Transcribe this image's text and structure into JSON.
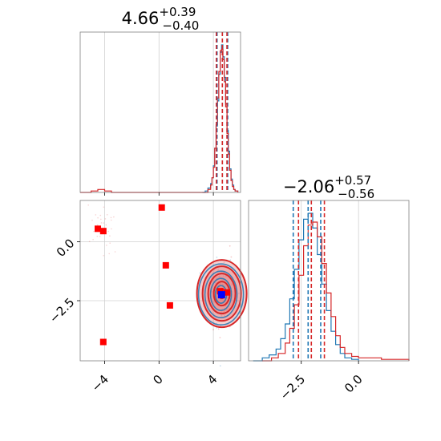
{
  "chart_data": [
    {
      "type": "histogram",
      "panel": "top-left marginal",
      "title": {
        "value": "4.66",
        "plus": "+0.39",
        "minus": "−0.40"
      },
      "xlim": [
        -5.8,
        6.0
      ],
      "grid": true,
      "series": [
        {
          "name": "",
          "color": "#1f77b4",
          "x": [
            3.2,
            3.4,
            3.6,
            3.8,
            3.9,
            4.0,
            4.1,
            4.2,
            4.3,
            4.4,
            4.5,
            4.6,
            4.7,
            4.8,
            4.9,
            5.0,
            5.1,
            5.2,
            5.3,
            5.4,
            5.5,
            5.6,
            5.8
          ],
          "y": [
            0.0,
            0.01,
            0.03,
            0.06,
            0.1,
            0.18,
            0.3,
            0.45,
            0.62,
            0.8,
            0.95,
            1.0,
            0.92,
            0.78,
            0.6,
            0.42,
            0.28,
            0.16,
            0.09,
            0.05,
            0.02,
            0.01,
            0.0
          ]
        },
        {
          "name": "",
          "color": "#d62728",
          "x": [
            -5.8,
            -5.0,
            -4.5,
            -4.0,
            -3.5,
            3.4,
            3.6,
            3.8,
            3.9,
            4.0,
            4.1,
            4.2,
            4.3,
            4.4,
            4.5,
            4.6,
            4.7,
            4.8,
            4.9,
            5.0,
            5.1,
            5.2,
            5.3,
            5.4,
            5.5,
            5.6,
            5.8
          ],
          "y": [
            0.0,
            0.01,
            0.02,
            0.01,
            0.0,
            0.0,
            0.02,
            0.05,
            0.1,
            0.17,
            0.3,
            0.46,
            0.64,
            0.82,
            0.96,
            0.97,
            0.9,
            0.75,
            0.58,
            0.4,
            0.26,
            0.15,
            0.08,
            0.04,
            0.02,
            0.01,
            0.0
          ]
        }
      ],
      "quantiles": {
        "blue": [
          4.27,
          4.66,
          5.05
        ],
        "red": [
          4.22,
          4.66,
          5.0
        ]
      }
    },
    {
      "type": "scatter-contour",
      "panel": "bottom-left joint",
      "xlim": [
        -5.8,
        6.0
      ],
      "ylim": [
        -5.05,
        1.75
      ],
      "xticks": [
        "−4",
        "0",
        "4"
      ],
      "xtick_values": [
        -4,
        0,
        4
      ],
      "yticks": [
        "0.0",
        "−2.5"
      ],
      "ytick_values": [
        0.0,
        -2.5
      ],
      "grid": true,
      "red_squares": [
        [
          -4.5,
          0.55
        ],
        [
          -4.1,
          0.45
        ],
        [
          0.2,
          1.45
        ],
        [
          0.5,
          -1.0
        ],
        [
          0.8,
          -2.7
        ],
        [
          -4.1,
          -4.25
        ],
        [
          4.5,
          -2.1
        ],
        [
          5.0,
          -2.15
        ]
      ],
      "blue_square": [
        4.6,
        -2.25
      ],
      "contour_center": [
        4.62,
        -2.2
      ]
    },
    {
      "type": "histogram",
      "panel": "bottom-right marginal",
      "title": {
        "value": "−2.06",
        "plus": "+0.57",
        "minus": "−0.56"
      },
      "xlim": [
        -4.8,
        2.2
      ],
      "xticks": [
        "−2.5",
        "0.0"
      ],
      "xtick_values": [
        -2.5,
        0.0
      ],
      "grid": true,
      "series": [
        {
          "name": "",
          "color": "#1f77b4",
          "x": [
            -4.6,
            -4.2,
            -3.9,
            -3.6,
            -3.4,
            -3.2,
            -3.0,
            -2.8,
            -2.6,
            -2.4,
            -2.2,
            -2.0,
            -1.8,
            -1.6,
            -1.4,
            -1.2,
            -1.0,
            -0.8,
            -0.6,
            -0.3,
            0.0
          ],
          "y": [
            0.0,
            0.02,
            0.04,
            0.08,
            0.15,
            0.25,
            0.42,
            0.62,
            0.82,
            0.96,
            1.0,
            0.9,
            0.72,
            0.52,
            0.34,
            0.2,
            0.11,
            0.05,
            0.02,
            0.01,
            0.0
          ]
        },
        {
          "name": "",
          "color": "#d62728",
          "x": [
            -4.2,
            -3.8,
            -3.5,
            -3.2,
            -3.0,
            -2.8,
            -2.6,
            -2.4,
            -2.2,
            -2.0,
            -1.8,
            -1.6,
            -1.4,
            -1.2,
            -1.0,
            -0.8,
            -0.6,
            -0.3,
            0.0,
            0.5,
            1.0,
            1.5,
            2.2
          ],
          "y": [
            0.0,
            0.02,
            0.05,
            0.12,
            0.22,
            0.38,
            0.58,
            0.78,
            0.92,
            0.94,
            0.84,
            0.66,
            0.46,
            0.3,
            0.17,
            0.09,
            0.05,
            0.03,
            0.02,
            0.02,
            0.01,
            0.01,
            0.0
          ]
        }
      ],
      "quantiles": {
        "blue": [
          -2.85,
          -2.2,
          -1.65
        ],
        "red": [
          -2.62,
          -2.06,
          -1.49
        ]
      }
    }
  ]
}
